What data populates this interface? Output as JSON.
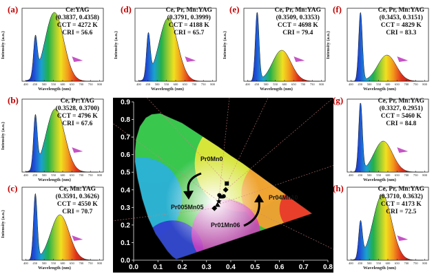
{
  "panels": [
    {
      "id": "a",
      "label": "(a)",
      "lines": [
        "Ce:YAG",
        "(0.3837, 0.4358)",
        "CCT = 4272 K",
        "CRI = 56.6"
      ]
    },
    {
      "id": "b",
      "label": "(b)",
      "lines": [
        "Ce, Pr:YAG",
        "(0.3528, 0.3700)",
        "CCT = 4796 K",
        "CRI = 67.6"
      ]
    },
    {
      "id": "c",
      "label": "(c)",
      "lines": [
        "Ce, Mn:YAG",
        "(0.3591, 0.3626)",
        "CCT = 4550 K",
        "CRI = 70.7"
      ]
    },
    {
      "id": "d",
      "label": "(d)",
      "lines": [
        "Ce, Pr, Mn:YAG",
        "(0.3791, 0.3999)",
        "CCT = 4188 K",
        "CRI = 65.7"
      ]
    },
    {
      "id": "e",
      "label": "(e)",
      "lines": [
        "Ce, Pr, Mn:YAG",
        "(0.3509, 0.3353)",
        "CCT = 4698 K",
        "CRI = 79.4"
      ]
    },
    {
      "id": "f",
      "label": "(f)",
      "lines": [
        "Ce, Pr, Mn:YAG",
        "(0.3453, 0.3151)",
        "CCT = 4829 K",
        "CRI = 83.3"
      ]
    },
    {
      "id": "g",
      "label": "(g)",
      "lines": [
        "Ce, Pr, Mn:YAG",
        "(0.3327, 0.2951)",
        "CCT = 5460 K",
        "CRI = 84.8"
      ]
    },
    {
      "id": "h",
      "label": "(h)",
      "lines": [
        "Ce, Pr, Mn:YAG",
        "(0.3710, 0.3632)",
        "CCT = 4173 K",
        "CRI = 72.5"
      ]
    }
  ],
  "axis": {
    "ylabel": "Intensity (a.u.)",
    "xlabel": "Wavelength (nm)",
    "xticks": [
      "400",
      "450",
      "500",
      "550",
      "600",
      "650",
      "700",
      "750",
      "800"
    ]
  },
  "cie": {
    "xticks": [
      "0.0",
      "0.1",
      "0.2",
      "0.3",
      "0.4",
      "0.5",
      "0.6",
      "0.7",
      "0.8"
    ],
    "yticks": [
      "0.0",
      "0.1",
      "0.2",
      "0.3",
      "0.4",
      "0.5",
      "0.6",
      "0.7",
      "0.8",
      "0.9"
    ],
    "labels": [
      "Pr0Mn0",
      "Pr005Mn05",
      "Pr01Mn06",
      "Pr04Mn10"
    ]
  },
  "colors": {
    "panel_label": "#c00000",
    "arrow": "#c040c0",
    "plot_bg": "#000000"
  },
  "chart_data": {
    "type": "scatter",
    "xlim": [
      0.0,
      0.8
    ],
    "ylim": [
      0.0,
      0.9
    ],
    "series": [
      {
        "values": [
          {
            "x": 0.3837,
            "y": 0.4358
          },
          {
            "x": 0.3528,
            "y": 0.37
          },
          {
            "x": 0.3591,
            "y": 0.3626
          },
          {
            "x": 0.3791,
            "y": 0.3999
          },
          {
            "x": 0.3509,
            "y": 0.3353
          },
          {
            "x": 0.3453,
            "y": 0.3151
          },
          {
            "x": 0.3327,
            "y": 0.2951
          },
          {
            "x": 0.371,
            "y": 0.3632
          }
        ]
      }
    ],
    "spectra": {
      "a": {
        "blue_peak": 0.55,
        "yellow_peak": 1.0,
        "yellow_center": 555
      },
      "b": {
        "blue_peak": 0.75,
        "yellow_peak": 0.92,
        "yellow_center": 560
      },
      "c": {
        "blue_peak": 0.95,
        "yellow_peak": 0.66,
        "yellow_center": 585
      },
      "d": {
        "blue_peak": 0.62,
        "yellow_peak": 0.92,
        "yellow_center": 560
      },
      "e": {
        "blue_peak": 1.0,
        "yellow_peak": 0.45,
        "yellow_center": 585
      },
      "f": {
        "blue_peak": 1.0,
        "yellow_peak": 0.38,
        "yellow_center": 595
      },
      "g": {
        "blue_peak": 1.0,
        "yellow_peak": 0.45,
        "yellow_center": 575
      },
      "h": {
        "blue_peak": 0.52,
        "yellow_peak": 0.95,
        "yellow_center": 570
      }
    }
  }
}
